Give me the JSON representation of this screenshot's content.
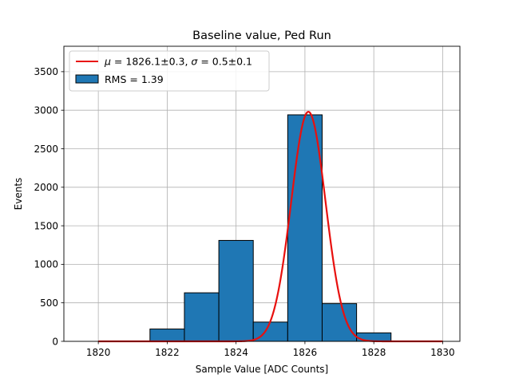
{
  "chart_data": {
    "type": "bar",
    "title": "Baseline value, Ped Run",
    "xlabel": "Sample Value [ADC Counts]",
    "ylabel": "Events",
    "xlim": [
      1819,
      1830.5
    ],
    "ylim": [
      0,
      3830
    ],
    "x_ticks": [
      1820,
      1822,
      1824,
      1826,
      1828,
      1830
    ],
    "y_ticks": [
      0,
      500,
      1000,
      1500,
      2000,
      2500,
      3000,
      3500
    ],
    "grid": true,
    "legend_position": "top-left",
    "histogram": {
      "name": "RMS = 1.39",
      "color": "#1f77b4",
      "edge_color": "#000000",
      "bins": [
        {
          "x0": 1819.5,
          "x1": 1820.5,
          "count": 0
        },
        {
          "x0": 1820.5,
          "x1": 1821.5,
          "count": 0
        },
        {
          "x0": 1821.5,
          "x1": 1822.5,
          "count": 160
        },
        {
          "x0": 1822.5,
          "x1": 1823.5,
          "count": 630
        },
        {
          "x0": 1823.5,
          "x1": 1824.5,
          "count": 1310
        },
        {
          "x0": 1824.5,
          "x1": 1825.5,
          "count": 250
        },
        {
          "x0": 1825.5,
          "x1": 1826.5,
          "count": 2940
        },
        {
          "x0": 1826.5,
          "x1": 1827.5,
          "count": 490
        },
        {
          "x0": 1827.5,
          "x1": 1828.5,
          "count": 110
        },
        {
          "x0": 1828.5,
          "x1": 1829.5,
          "count": 0
        }
      ]
    },
    "fit": {
      "legend_mu": "μ",
      "legend_rest": " = 1826.1±0.3, ",
      "legend_sigma": "σ",
      "legend_tail": " = 0.5±0.1",
      "color": "#e8100e",
      "function": "gaussian",
      "mu": 1826.1,
      "sigma": 0.5,
      "amplitude": 2980,
      "x_range": [
        1820,
        1830
      ]
    }
  }
}
